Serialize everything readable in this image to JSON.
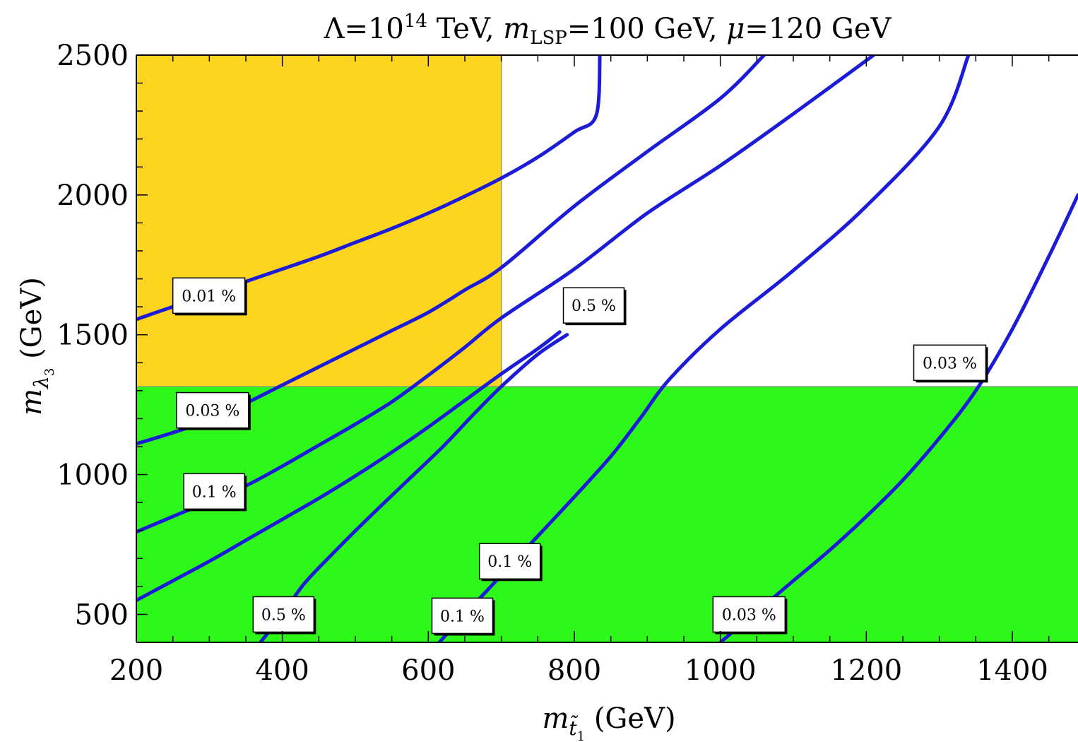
{
  "chart_data": {
    "type": "contour",
    "title": {
      "lambda_prefix": "Λ=10",
      "lambda_exp": "14",
      "after_lambda": " TeV, ",
      "m": "m",
      "lsp_sub": "LSP",
      "lsp_value": "=100 GeV, ",
      "mu": "μ",
      "mu_value": "=120 GeV"
    },
    "xlabel": {
      "m": "m",
      "sub": "t̃",
      "subsub": "1",
      "unit": " (GeV)"
    },
    "ylabel": {
      "m": "m",
      "sub": "λ",
      "subsub": "3",
      "unit": " (GeV)"
    },
    "xlim": [
      200,
      1490
    ],
    "ylim": [
      400,
      2500
    ],
    "xticks": [
      200,
      400,
      600,
      800,
      1000,
      1200,
      1400
    ],
    "yticks": [
      500,
      1000,
      1500,
      2000,
      2500
    ],
    "colors": {
      "contour": "#1c1cd8",
      "excluded_gluino": "#2ef81a",
      "excluded_stop": "#fdd520",
      "frame": "#000000"
    },
    "regions": [
      {
        "name": "gluino-excluded",
        "x": [
          200,
          1490
        ],
        "y": [
          400,
          1315
        ],
        "color": "#2ef81a"
      },
      {
        "name": "stop-excluded",
        "x": [
          200,
          700
        ],
        "y": [
          1315,
          2500
        ],
        "color": "#fdd520"
      }
    ],
    "contours": [
      {
        "label": "0.01 %",
        "points": [
          [
            200,
            1555
          ],
          [
            250,
            1600
          ],
          [
            300,
            1640
          ],
          [
            350,
            1690
          ],
          [
            400,
            1735
          ],
          [
            450,
            1780
          ],
          [
            500,
            1830
          ],
          [
            550,
            1880
          ],
          [
            600,
            1935
          ],
          [
            650,
            1995
          ],
          [
            700,
            2060
          ],
          [
            750,
            2135
          ],
          [
            800,
            2225
          ],
          [
            830,
            2285
          ],
          [
            835,
            2500
          ]
        ]
      },
      {
        "label": "0.03 %",
        "points": [
          [
            200,
            1110
          ],
          [
            250,
            1150
          ],
          [
            300,
            1195
          ],
          [
            350,
            1255
          ],
          [
            400,
            1320
          ],
          [
            450,
            1385
          ],
          [
            500,
            1450
          ],
          [
            550,
            1515
          ],
          [
            600,
            1580
          ],
          [
            650,
            1660
          ],
          [
            700,
            1740
          ],
          [
            800,
            1960
          ],
          [
            900,
            2155
          ],
          [
            1000,
            2345
          ],
          [
            1060,
            2500
          ]
        ]
      },
      {
        "label": "0.1 %",
        "points": [
          [
            200,
            795
          ],
          [
            250,
            850
          ],
          [
            300,
            905
          ],
          [
            350,
            960
          ],
          [
            400,
            1030
          ],
          [
            450,
            1105
          ],
          [
            500,
            1180
          ],
          [
            550,
            1260
          ],
          [
            600,
            1355
          ],
          [
            650,
            1455
          ],
          [
            700,
            1560
          ],
          [
            800,
            1735
          ],
          [
            900,
            1935
          ],
          [
            1000,
            2105
          ],
          [
            1100,
            2290
          ],
          [
            1210,
            2500
          ]
        ]
      },
      {
        "label": "0.5 %",
        "points": [
          [
            200,
            550
          ],
          [
            250,
            620
          ],
          [
            300,
            690
          ],
          [
            350,
            765
          ],
          [
            400,
            840
          ],
          [
            450,
            915
          ],
          [
            500,
            995
          ],
          [
            550,
            1080
          ],
          [
            600,
            1170
          ],
          [
            650,
            1265
          ],
          [
            700,
            1360
          ],
          [
            750,
            1450
          ],
          [
            780,
            1510
          ]
        ]
      },
      {
        "label": "0.5 %",
        "points": [
          [
            370,
            400
          ],
          [
            400,
            500
          ],
          [
            430,
            610
          ],
          [
            470,
            720
          ],
          [
            520,
            850
          ],
          [
            570,
            975
          ],
          [
            620,
            1100
          ],
          [
            660,
            1210
          ],
          [
            700,
            1315
          ],
          [
            750,
            1430
          ],
          [
            790,
            1500
          ]
        ]
      },
      {
        "label": "0.1 %",
        "points": [
          [
            615,
            400
          ],
          [
            650,
            500
          ],
          [
            700,
            640
          ],
          [
            750,
            780
          ],
          [
            800,
            920
          ],
          [
            850,
            1065
          ],
          [
            890,
            1200
          ],
          [
            930,
            1340
          ],
          [
            1000,
            1520
          ],
          [
            1100,
            1730
          ],
          [
            1200,
            1960
          ],
          [
            1300,
            2245
          ],
          [
            1340,
            2500
          ]
        ]
      },
      {
        "label": "0.03 %",
        "points": [
          [
            1000,
            400
          ],
          [
            1050,
            510
          ],
          [
            1100,
            620
          ],
          [
            1150,
            730
          ],
          [
            1200,
            850
          ],
          [
            1250,
            980
          ],
          [
            1300,
            1130
          ],
          [
            1350,
            1300
          ],
          [
            1400,
            1520
          ],
          [
            1450,
            1780
          ],
          [
            1490,
            2000
          ]
        ]
      }
    ],
    "contour_labels": [
      {
        "text": "0.01 %",
        "x": 250,
        "y": 1640
      },
      {
        "text": "0.03 %",
        "x": 255,
        "y": 1230
      },
      {
        "text": "0.1 %",
        "x": 265,
        "y": 940
      },
      {
        "text": "0.5 %",
        "x": 785,
        "y": 1605
      },
      {
        "text": "0.03 %",
        "x": 1265,
        "y": 1400
      },
      {
        "text": "0.1 %",
        "x": 670,
        "y": 690
      },
      {
        "text": "0.5 %",
        "x": 360,
        "y": 500
      },
      {
        "text": "0.1 %",
        "x": 605,
        "y": 495
      },
      {
        "text": "0.03 %",
        "x": 990,
        "y": 500
      }
    ]
  }
}
